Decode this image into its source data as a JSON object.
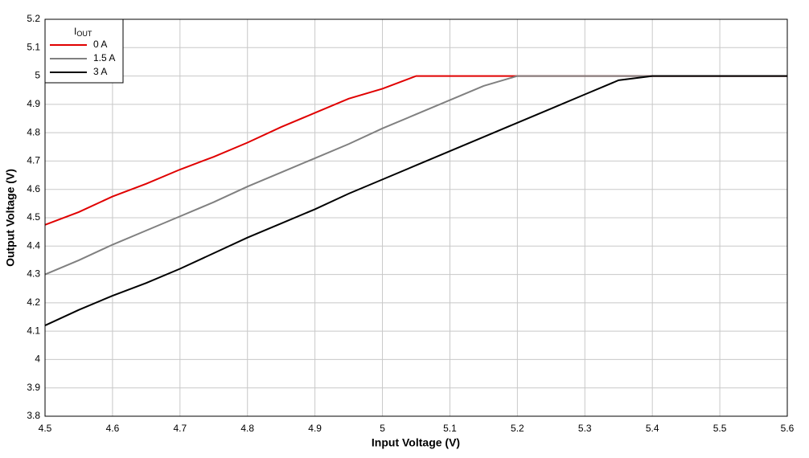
{
  "chart_data": {
    "type": "line",
    "x_label": "Input Voltage (V)",
    "y_label": "Output Voltage (V)",
    "legend_title": {
      "main": "I",
      "sub": "OUT"
    },
    "legend_position": "upper left",
    "grid": true,
    "xlim": [
      4.5,
      5.6
    ],
    "ylim": [
      3.8,
      5.2
    ],
    "xticks": [
      4.5,
      4.6,
      4.7,
      4.8,
      4.9,
      5,
      5.1,
      5.2,
      5.3,
      5.4,
      5.5,
      5.6
    ],
    "yticks": [
      3.8,
      3.9,
      4,
      4.1,
      4.2,
      4.3,
      4.4,
      4.5,
      4.6,
      4.7,
      4.8,
      4.9,
      5,
      5.1,
      5.2
    ],
    "x": [
      4.5,
      4.55,
      4.6,
      4.65,
      4.7,
      4.75,
      4.8,
      4.85,
      4.9,
      4.95,
      5.0,
      5.05,
      5.1,
      5.15,
      5.2,
      5.25,
      5.3,
      5.35,
      5.4,
      5.45,
      5.5,
      5.55,
      5.6
    ],
    "series": [
      {
        "name": "0 A",
        "color": "#e00000",
        "values": [
          4.475,
          4.52,
          4.575,
          4.62,
          4.67,
          4.715,
          4.765,
          4.82,
          4.87,
          4.92,
          4.955,
          5.0,
          5.0,
          5.0,
          5.0,
          5.0,
          5.0,
          5.0,
          5.0,
          5.0,
          5.0,
          5.0,
          5.0
        ]
      },
      {
        "name": "1.5 A",
        "color": "#808080",
        "values": [
          4.3,
          4.35,
          4.405,
          4.455,
          4.505,
          4.555,
          4.61,
          4.66,
          4.71,
          4.76,
          4.815,
          4.865,
          4.915,
          4.965,
          5.0,
          5.0,
          5.0,
          5.0,
          5.0,
          5.0,
          5.0,
          5.0,
          5.0
        ]
      },
      {
        "name": "3 A",
        "color": "#000000",
        "values": [
          4.12,
          4.175,
          4.225,
          4.27,
          4.32,
          4.375,
          4.43,
          4.48,
          4.53,
          4.585,
          4.635,
          4.685,
          4.735,
          4.785,
          4.835,
          4.885,
          4.935,
          4.985,
          5.0,
          5.0,
          5.0,
          5.0,
          5.0
        ]
      }
    ]
  }
}
